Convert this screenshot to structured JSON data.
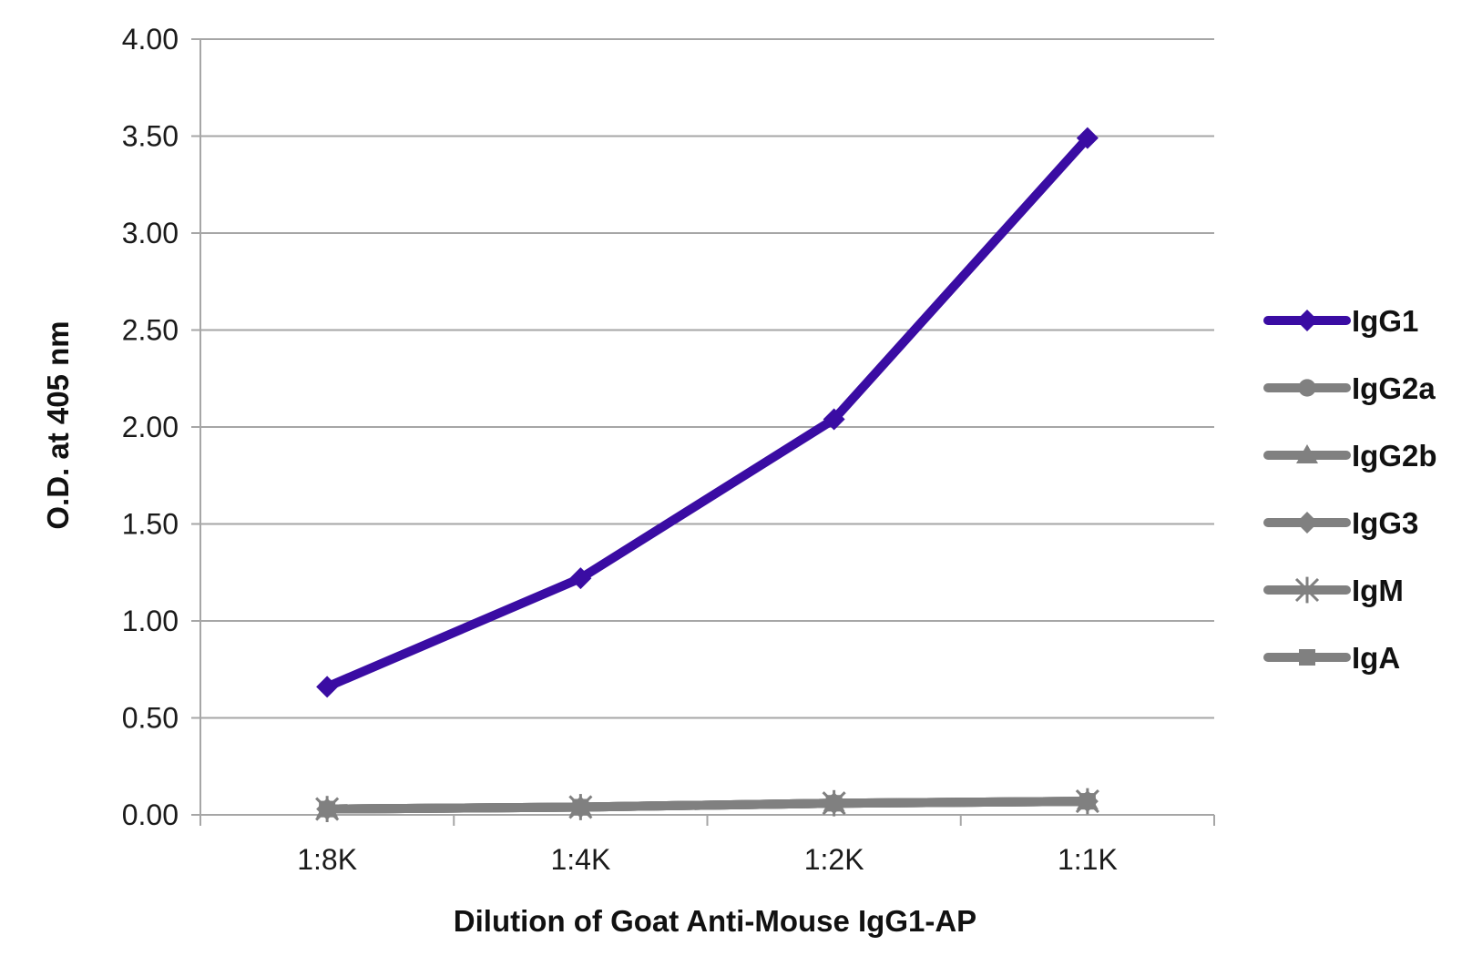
{
  "chart_data": {
    "type": "line",
    "title": "",
    "xlabel": "Dilution of Goat Anti-Mouse IgG1-AP",
    "ylabel": "O.D. at 405 nm",
    "categories": [
      "1:8K",
      "1:4K",
      "1:2K",
      "1:1K"
    ],
    "ylim": [
      0,
      4
    ],
    "y_ticks": [
      0,
      0.5,
      1,
      1.5,
      2,
      2.5,
      3,
      3.5,
      4
    ],
    "y_tick_labels": [
      "0.00",
      "0.50",
      "1.00",
      "1.50",
      "2.00",
      "2.50",
      "3.00",
      "3.50",
      "4.00"
    ],
    "grid": "horizontal",
    "legend_position": "right",
    "series": [
      {
        "name": "IgG1",
        "values": [
          0.66,
          1.22,
          2.04,
          3.49
        ],
        "color": "#3a0ca3",
        "marker": "diamond"
      },
      {
        "name": "IgG2a",
        "values": [
          0.03,
          0.04,
          0.06,
          0.07
        ],
        "color": "#808080",
        "marker": "circle"
      },
      {
        "name": "IgG2b",
        "values": [
          0.03,
          0.04,
          0.06,
          0.07
        ],
        "color": "#808080",
        "marker": "triangle"
      },
      {
        "name": "IgG3",
        "values": [
          0.03,
          0.04,
          0.06,
          0.07
        ],
        "color": "#808080",
        "marker": "diamond"
      },
      {
        "name": "IgM",
        "values": [
          0.03,
          0.04,
          0.06,
          0.07
        ],
        "color": "#808080",
        "marker": "star"
      },
      {
        "name": "IgA",
        "values": [
          0.03,
          0.04,
          0.06,
          0.07
        ],
        "color": "#808080",
        "marker": "square"
      }
    ]
  }
}
